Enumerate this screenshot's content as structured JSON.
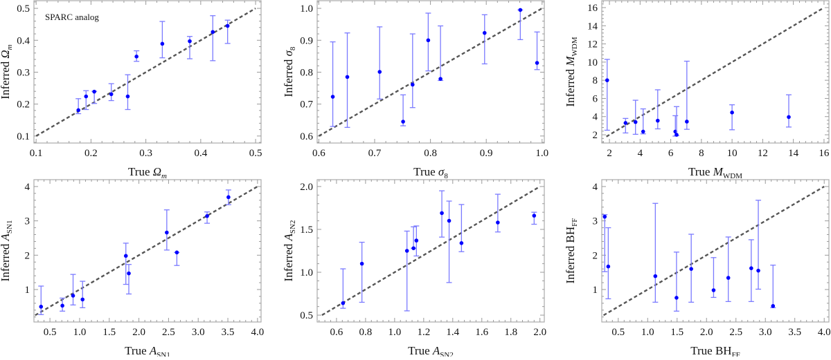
{
  "chart_data": [
    {
      "type": "scatter",
      "annotation": "SPARC analog",
      "xlabel": {
        "prefix": "True",
        "symbol": "Ω",
        "sub": "m",
        "italic_sub": true
      },
      "ylabel": {
        "prefix": "Inferred",
        "symbol": "Ω",
        "sub": "m",
        "italic_sub": true
      },
      "xlim": [
        0.096,
        0.51
      ],
      "ylim": [
        0.078,
        0.524
      ],
      "xticks": [
        0.1,
        0.2,
        0.3,
        0.4,
        0.5
      ],
      "xtick_labels": [
        "0.1",
        "0.2",
        "0.3",
        "0.4",
        "0.5"
      ],
      "yticks": [
        0.1,
        0.2,
        0.3,
        0.4,
        0.5
      ],
      "ytick_labels": [
        "0.1",
        "0.2",
        "0.3",
        "0.4",
        "0.5"
      ],
      "reference_line": [
        0.1,
        0.5
      ],
      "points": [
        {
          "x": 0.177,
          "y": 0.181,
          "lo": 0.17,
          "hi": 0.217
        },
        {
          "x": 0.191,
          "y": 0.224,
          "lo": 0.183,
          "hi": 0.242
        },
        {
          "x": 0.206,
          "y": 0.239,
          "lo": 0.202,
          "hi": 0.24
        },
        {
          "x": 0.237,
          "y": 0.231,
          "lo": 0.211,
          "hi": 0.264
        },
        {
          "x": 0.267,
          "y": 0.224,
          "lo": 0.183,
          "hi": 0.292
        },
        {
          "x": 0.283,
          "y": 0.349,
          "lo": 0.334,
          "hi": 0.367
        },
        {
          "x": 0.33,
          "y": 0.389,
          "lo": 0.345,
          "hi": 0.459
        },
        {
          "x": 0.38,
          "y": 0.397,
          "lo": 0.342,
          "hi": 0.412
        },
        {
          "x": 0.422,
          "y": 0.426,
          "lo": 0.336,
          "hi": 0.477
        },
        {
          "x": 0.449,
          "y": 0.445,
          "lo": 0.39,
          "hi": 0.463
        }
      ]
    },
    {
      "type": "scatter",
      "xlabel": {
        "prefix": "True",
        "symbol": "σ",
        "sub": "8",
        "italic_sub": false
      },
      "ylabel": {
        "prefix": "Inferred",
        "symbol": "σ",
        "sub": "8",
        "italic_sub": false
      },
      "xlim": [
        0.597,
        1.004
      ],
      "ylim": [
        0.578,
        1.024
      ],
      "xticks": [
        0.6,
        0.7,
        0.8,
        0.9,
        1.0
      ],
      "xtick_labels": [
        "0.6",
        "0.7",
        "0.8",
        "0.9",
        "1.0"
      ],
      "yticks": [
        0.6,
        0.7,
        0.8,
        0.9,
        1.0
      ],
      "ytick_labels": [
        "0.6",
        "0.7",
        "0.8",
        "0.9",
        "1.0"
      ],
      "reference_line": [
        0.6,
        1.0
      ],
      "points": [
        {
          "x": 0.625,
          "y": 0.723,
          "lo": 0.63,
          "hi": 0.895
        },
        {
          "x": 0.651,
          "y": 0.785,
          "lo": 0.627,
          "hi": 0.923
        },
        {
          "x": 0.709,
          "y": 0.801,
          "lo": 0.716,
          "hi": 0.942
        },
        {
          "x": 0.751,
          "y": 0.645,
          "lo": 0.632,
          "hi": 0.729
        },
        {
          "x": 0.768,
          "y": 0.761,
          "lo": 0.689,
          "hi": 0.92
        },
        {
          "x": 0.796,
          "y": 0.9,
          "lo": 0.804,
          "hi": 0.985
        },
        {
          "x": 0.818,
          "y": 0.779,
          "lo": 0.774,
          "hi": 0.945
        },
        {
          "x": 0.897,
          "y": 0.923,
          "lo": 0.826,
          "hi": 0.98
        },
        {
          "x": 0.961,
          "y": 0.995,
          "lo": 0.902,
          "hi": 0.995
        },
        {
          "x": 0.991,
          "y": 0.829,
          "lo": 0.808,
          "hi": 0.926
        }
      ]
    },
    {
      "type": "scatter",
      "xlabel": {
        "prefix": "True",
        "symbol": "M",
        "sub": "WDM",
        "italic_sub": false
      },
      "ylabel": {
        "prefix": "Inferred",
        "symbol": "M",
        "sub": "WDM",
        "italic_sub": false
      },
      "xlim": [
        1.5,
        16.32
      ],
      "ylim": [
        1.09,
        16.76
      ],
      "xticks": [
        2,
        4,
        6,
        8,
        10,
        12,
        14,
        16
      ],
      "xtick_labels": [
        "2",
        "4",
        "6",
        "8",
        "10",
        "12",
        "14",
        "16"
      ],
      "yticks": [
        2,
        4,
        6,
        8,
        10,
        12,
        14,
        16
      ],
      "ytick_labels": [
        "2",
        "4",
        "6",
        "8",
        "10",
        "12",
        "14",
        "16"
      ],
      "reference_line": [
        1.8,
        16
      ],
      "points": [
        {
          "x": 1.85,
          "y": 8.0,
          "lo": 2.5,
          "hi": 10.3
        },
        {
          "x": 3.05,
          "y": 3.3,
          "lo": 2.2,
          "hi": 3.8
        },
        {
          "x": 3.7,
          "y": 3.4,
          "lo": 2.05,
          "hi": 5.8
        },
        {
          "x": 4.2,
          "y": 2.35,
          "lo": 2.1,
          "hi": 4.85
        },
        {
          "x": 5.15,
          "y": 3.55,
          "lo": 2.65,
          "hi": 6.95
        },
        {
          "x": 6.3,
          "y": 2.35,
          "lo": 1.85,
          "hi": 4.1
        },
        {
          "x": 6.38,
          "y": 2.0,
          "lo": 1.9,
          "hi": 5.1
        },
        {
          "x": 7.05,
          "y": 3.45,
          "lo": 2.6,
          "hi": 10.1
        },
        {
          "x": 10.0,
          "y": 4.45,
          "lo": 2.55,
          "hi": 5.3
        },
        {
          "x": 13.7,
          "y": 3.95,
          "lo": 2.85,
          "hi": 6.4
        }
      ]
    },
    {
      "type": "scatter",
      "xlabel": {
        "prefix": "True",
        "symbol": "A",
        "sub": "SN1",
        "italic_sub": false
      },
      "ylabel": {
        "prefix": "Inferred",
        "symbol": "A",
        "sub": "SN1",
        "italic_sub": false
      },
      "xlim": [
        0.23,
        4.06
      ],
      "ylim": [
        0.054,
        4.2
      ],
      "xticks": [
        0.5,
        1.0,
        1.5,
        2.0,
        2.5,
        3.0,
        3.5,
        4.0
      ],
      "xtick_labels": [
        "0.5",
        "1.0",
        "1.5",
        "2.0",
        "2.5",
        "3.0",
        "3.5",
        "4.0"
      ],
      "yticks": [
        1,
        2,
        3,
        4
      ],
      "ytick_labels": [
        "1",
        "2",
        "3",
        "4"
      ],
      "reference_line": [
        0.25,
        4.0
      ],
      "points": [
        {
          "x": 0.35,
          "y": 0.5,
          "lo": 0.27,
          "hi": 1.1
        },
        {
          "x": 0.71,
          "y": 0.53,
          "lo": 0.37,
          "hi": 0.75
        },
        {
          "x": 0.89,
          "y": 0.82,
          "lo": 0.55,
          "hi": 1.44
        },
        {
          "x": 1.05,
          "y": 0.71,
          "lo": 0.47,
          "hi": 1.24
        },
        {
          "x": 1.78,
          "y": 1.98,
          "lo": 1.15,
          "hi": 2.35
        },
        {
          "x": 1.83,
          "y": 1.47,
          "lo": 0.87,
          "hi": 1.73
        },
        {
          "x": 2.47,
          "y": 2.66,
          "lo": 2.15,
          "hi": 3.32
        },
        {
          "x": 2.64,
          "y": 2.08,
          "lo": 1.7,
          "hi": 2.08
        },
        {
          "x": 3.15,
          "y": 3.14,
          "lo": 2.93,
          "hi": 3.26
        },
        {
          "x": 3.51,
          "y": 3.69,
          "lo": 3.47,
          "hi": 3.9
        }
      ]
    },
    {
      "type": "scatter",
      "xlabel": {
        "prefix": "True",
        "symbol": "A",
        "sub": "SN2",
        "italic_sub": false
      },
      "ylabel": {
        "prefix": "Inferred",
        "symbol": "A",
        "sub": "SN2",
        "italic_sub": false
      },
      "xlim": [
        0.467,
        2.03
      ],
      "ylim": [
        0.42,
        2.08
      ],
      "xticks": [
        0.6,
        0.8,
        1.0,
        1.2,
        1.4,
        1.6,
        1.8,
        2.0
      ],
      "xtick_labels": [
        "0.6",
        "0.8",
        "1.0",
        "1.2",
        "1.4",
        "1.6",
        "1.8",
        "2.0"
      ],
      "yticks": [
        0.5,
        1.0,
        1.5,
        2.0
      ],
      "ytick_labels": [
        "0.5",
        "1.0",
        "1.5",
        "2.0"
      ],
      "reference_line": [
        0.5,
        2.0
      ],
      "points": [
        {
          "x": 0.645,
          "y": 0.64,
          "lo": 0.58,
          "hi": 1.04
        },
        {
          "x": 0.775,
          "y": 1.1,
          "lo": 0.65,
          "hi": 1.35
        },
        {
          "x": 1.085,
          "y": 1.25,
          "lo": 0.55,
          "hi": 1.48
        },
        {
          "x": 1.13,
          "y": 1.28,
          "lo": 1.28,
          "hi": 1.53
        },
        {
          "x": 1.15,
          "y": 1.37,
          "lo": 1.19,
          "hi": 1.54
        },
        {
          "x": 1.325,
          "y": 1.69,
          "lo": 1.41,
          "hi": 1.95
        },
        {
          "x": 1.375,
          "y": 1.6,
          "lo": 0.88,
          "hi": 1.83
        },
        {
          "x": 1.46,
          "y": 1.34,
          "lo": 1.24,
          "hi": 1.79
        },
        {
          "x": 1.71,
          "y": 1.58,
          "lo": 1.47,
          "hi": 1.91
        },
        {
          "x": 1.96,
          "y": 1.66,
          "lo": 1.56,
          "hi": 1.7
        }
      ]
    },
    {
      "type": "scatter",
      "xlabel": {
        "prefix": "True",
        "symbol": "BH",
        "sub": "FF",
        "italic_sub": false,
        "upright": true
      },
      "ylabel": {
        "prefix": "Inferred",
        "symbol": "BH",
        "sub": "FF",
        "italic_sub": false,
        "upright": true
      },
      "xlim": [
        0.22,
        4.08
      ],
      "ylim": [
        0.054,
        4.2
      ],
      "xticks": [
        0.5,
        1.0,
        1.5,
        2.0,
        2.5,
        3.0,
        3.5,
        4.0
      ],
      "xtick_labels": [
        "0.5",
        "1.0",
        "1.5",
        "2.0",
        "2.5",
        "3.0",
        "3.5",
        "4.0"
      ],
      "yticks": [
        1,
        2,
        3,
        4
      ],
      "ytick_labels": [
        "1",
        "2",
        "3",
        "4"
      ],
      "reference_line": [
        0.25,
        4.0
      ],
      "points": [
        {
          "x": 0.27,
          "y": 3.12,
          "lo": 1.52,
          "hi": 3.18
        },
        {
          "x": 0.33,
          "y": 1.67,
          "lo": 0.73,
          "hi": 2.8
        },
        {
          "x": 1.13,
          "y": 1.39,
          "lo": 0.63,
          "hi": 3.51
        },
        {
          "x": 1.49,
          "y": 0.76,
          "lo": 0.37,
          "hi": 2.09
        },
        {
          "x": 1.74,
          "y": 1.6,
          "lo": 0.63,
          "hi": 2.61
        },
        {
          "x": 2.12,
          "y": 0.98,
          "lo": 0.77,
          "hi": 1.93
        },
        {
          "x": 2.37,
          "y": 1.34,
          "lo": 0.65,
          "hi": 2.53
        },
        {
          "x": 2.76,
          "y": 1.62,
          "lo": 0.65,
          "hi": 2.45
        },
        {
          "x": 2.88,
          "y": 1.55,
          "lo": 1.01,
          "hi": 3.6
        },
        {
          "x": 3.13,
          "y": 0.52,
          "lo": 0.47,
          "hi": 1.71
        }
      ]
    }
  ],
  "colors": {
    "point": "#0000ff",
    "error_bar": "#7a7aff",
    "reference_line": "#555555",
    "frame": "#aaaaaa"
  }
}
